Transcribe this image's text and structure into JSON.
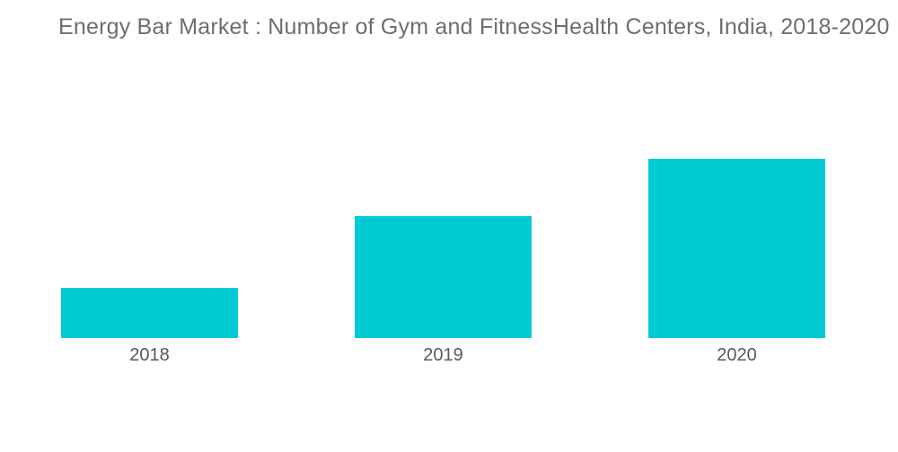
{
  "header": {
    "title": "Energy Bar Market : Number of Gym and FitnessHealth Centers, India, 2018-2020",
    "title_color": "#6d6e71"
  },
  "chart_data": {
    "type": "bar",
    "title": "Energy Bar Market : Number of Gym and FitnessHealth Centers, India, 2018-2020",
    "categories": [
      "2018",
      "2019",
      "2020"
    ],
    "values": [
      28,
      68,
      100
    ],
    "values_unit": "relative bar height, % of tallest bar (no numeric axis shown in chart)",
    "xlabel": "",
    "ylabel": "",
    "ylim": [
      0,
      100
    ],
    "bar_color": "#00cbd2",
    "label_color": "#58595b",
    "background_color": "#ffffff",
    "gridlines": false,
    "legend": "none",
    "data_labels": "none",
    "axes_visible": false
  }
}
